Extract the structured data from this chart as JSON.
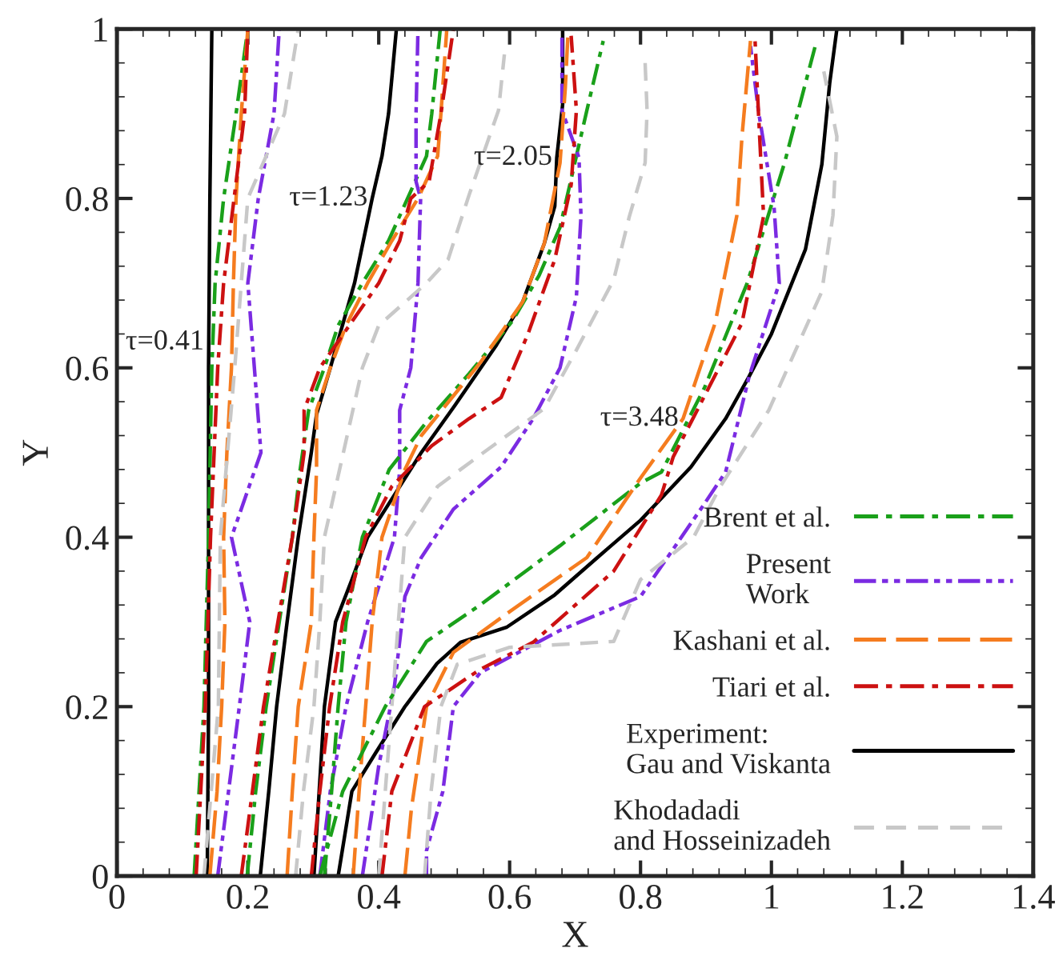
{
  "chart_data": {
    "type": "line",
    "xlabel": "X",
    "ylabel": "Y",
    "xlim": [
      0,
      1.4
    ],
    "ylim": [
      0,
      1
    ],
    "xticks": [
      0,
      0.2,
      0.4,
      0.6,
      0.8,
      1,
      1.2,
      1.4
    ],
    "yticks": [
      0,
      0.2,
      0.4,
      0.6,
      0.8,
      1
    ],
    "grid": false,
    "legend": "bottom right",
    "marker": "none",
    "annotations": [
      {
        "text": "τ=0.41",
        "x": 0.14,
        "y": 0.63
      },
      {
        "text": "τ=1.23",
        "x": 0.39,
        "y": 0.8
      },
      {
        "text": "τ=2.05",
        "x": 0.672,
        "y": 0.848
      },
      {
        "text": "τ=3.48",
        "x": 0.865,
        "y": 0.54
      }
    ],
    "series": [
      {
        "name": "Brent et al.",
        "color": "#1aa01a",
        "line_style": "dashdot",
        "x": [
          0.118,
          0.133,
          0.14,
          0.145,
          0.15,
          0.163,
          0.182,
          0.2
        ],
        "values": [
          0,
          0.2,
          0.4,
          0.6,
          0.7,
          0.8,
          0.9,
          1
        ]
      },
      {
        "name": "Present\nWork",
        "color": "#7b2be2",
        "line_style": "dashdotdot",
        "x": [
          0.154,
          0.187,
          0.203,
          0.175,
          0.22,
          0.21,
          0.2,
          0.216,
          0.24,
          0.248
        ],
        "values": [
          0,
          0.2,
          0.3,
          0.4,
          0.5,
          0.6,
          0.7,
          0.8,
          0.9,
          1
        ]
      },
      {
        "name": "Kashani et al.",
        "color": "#f57c1f",
        "line_style": "longdashed",
        "x": [
          0.142,
          0.153,
          0.16,
          0.165,
          0.163,
          0.168,
          0.175,
          0.178,
          0.182,
          0.19,
          0.2
        ],
        "values": [
          0,
          0.1,
          0.2,
          0.3,
          0.4,
          0.5,
          0.6,
          0.7,
          0.8,
          0.9,
          1
        ]
      },
      {
        "name": "Tiari et al.",
        "color": "#cc1111",
        "line_style": "dashdot",
        "x": [
          0.121,
          0.135,
          0.143,
          0.154,
          0.163,
          0.179,
          0.195,
          0.2
        ],
        "values": [
          0,
          0.2,
          0.4,
          0.6,
          0.7,
          0.8,
          0.9,
          1
        ]
      },
      {
        "name": "Experiment:\nGau and Viskanta",
        "color": "#000000",
        "line_style": "solid",
        "x": [
          0.138,
          0.14,
          0.14,
          0.14,
          0.142,
          0.145
        ],
        "values": [
          0,
          0.2,
          0.4,
          0.6,
          0.8,
          1
        ]
      },
      {
        "name": "Khodadadi\nand Hosseinizadeh",
        "color": "#c8c8c8",
        "line_style": "dashed",
        "x": [
          0.133,
          0.155,
          0.158,
          0.18,
          0.2,
          0.256,
          0.277
        ],
        "values": [
          0,
          0.2,
          0.4,
          0.6,
          0.8,
          0.9,
          1
        ]
      },
      {
        "color": "#1aa01a",
        "line_style": "dashdot",
        "x": [
          0.199,
          0.212,
          0.228,
          0.248,
          0.268,
          0.28,
          0.293,
          0.317,
          0.338,
          0.375,
          0.415,
          0.473,
          0.481,
          0.494
        ],
        "values": [
          0,
          0.1,
          0.2,
          0.3,
          0.4,
          0.48,
          0.55,
          0.6,
          0.65,
          0.7,
          0.75,
          0.85,
          0.9,
          1
        ]
      },
      {
        "color": "#7b2be2",
        "line_style": "dashdotdot",
        "x": [
          0.31,
          0.326,
          0.35,
          0.383,
          0.424,
          0.432,
          0.432,
          0.449,
          0.46,
          0.464,
          0.457,
          0.457,
          0.46
        ],
        "values": [
          0,
          0.1,
          0.2,
          0.3,
          0.4,
          0.48,
          0.55,
          0.6,
          0.7,
          0.8,
          0.82,
          0.9,
          1
        ]
      },
      {
        "color": "#f57c1f",
        "line_style": "longdashed",
        "x": [
          0.26,
          0.268,
          0.277,
          0.297,
          0.301,
          0.305,
          0.305,
          0.326,
          0.35,
          0.383,
          0.42,
          0.46,
          0.49,
          0.495,
          0.504
        ],
        "values": [
          0,
          0.1,
          0.2,
          0.3,
          0.4,
          0.48,
          0.55,
          0.6,
          0.65,
          0.7,
          0.75,
          0.8,
          0.85,
          0.9,
          1
        ]
      },
      {
        "color": "#cc1111",
        "line_style": "dashdot",
        "x": [
          0.19,
          0.224,
          0.268,
          0.286,
          0.286,
          0.31,
          0.4,
          0.432,
          0.449,
          0.477,
          0.495,
          0.514
        ],
        "values": [
          0,
          0.2,
          0.4,
          0.5,
          0.55,
          0.6,
          0.7,
          0.75,
          0.8,
          0.82,
          0.9,
          1
        ]
      },
      {
        "color": "#000000",
        "line_style": "solid",
        "x": [
          0.219,
          0.232,
          0.244,
          0.26,
          0.277,
          0.297,
          0.305,
          0.326,
          0.363,
          0.39,
          0.405,
          0.415,
          0.427
        ],
        "values": [
          0,
          0.1,
          0.2,
          0.3,
          0.4,
          0.5,
          0.545,
          0.6,
          0.7,
          0.8,
          0.85,
          0.9,
          1
        ]
      },
      {
        "color": "#c8c8c8",
        "line_style": "dashed",
        "x": [
          0.273,
          0.285,
          0.301,
          0.31,
          0.317,
          0.375,
          0.4,
          0.473,
          0.506,
          0.538,
          0.583,
          0.592
        ],
        "values": [
          0,
          0.1,
          0.2,
          0.3,
          0.4,
          0.6,
          0.65,
          0.7,
          0.728,
          0.804,
          0.904,
          0.97
        ]
      },
      {
        "color": "#1aa01a",
        "line_style": "dashdot",
        "x": [
          0.317,
          0.328,
          0.338,
          0.35,
          0.375,
          0.416,
          0.473,
          0.538,
          0.604,
          0.645,
          0.677,
          0.694,
          0.718,
          0.743
        ],
        "values": [
          0,
          0.1,
          0.2,
          0.3,
          0.4,
          0.48,
          0.536,
          0.593,
          0.655,
          0.709,
          0.766,
          0.823,
          0.904,
          0.986
        ]
      },
      {
        "color": "#7b2be2",
        "line_style": "dashdotdot",
        "x": [
          0.375,
          0.4,
          0.424,
          0.44,
          0.465,
          0.514,
          0.587,
          0.636,
          0.677,
          0.702,
          0.709,
          0.706,
          0.68,
          0.68
        ],
        "values": [
          0,
          0.13,
          0.224,
          0.33,
          0.376,
          0.433,
          0.483,
          0.54,
          0.6,
          0.684,
          0.779,
          0.848,
          0.904,
          0.99
        ]
      },
      {
        "color": "#f57c1f",
        "line_style": "longdashed",
        "x": [
          0.361,
          0.37,
          0.38,
          0.39,
          0.405,
          0.44,
          0.465,
          0.555,
          0.62,
          0.653,
          0.677,
          0.685,
          0.689
        ],
        "values": [
          0,
          0.1,
          0.2,
          0.3,
          0.4,
          0.48,
          0.52,
          0.606,
          0.678,
          0.747,
          0.842,
          0.93,
          0.992
        ]
      },
      {
        "color": "#cc1111",
        "line_style": "dashdot",
        "x": [
          0.297,
          0.31,
          0.325,
          0.345,
          0.38,
          0.42,
          0.481,
          0.538,
          0.587,
          0.628,
          0.669,
          0.694,
          0.702,
          0.694
        ],
        "values": [
          0,
          0.1,
          0.2,
          0.3,
          0.4,
          0.46,
          0.508,
          0.54,
          0.565,
          0.64,
          0.728,
          0.816,
          0.904,
          0.992
        ]
      },
      {
        "color": "#000000",
        "line_style": "solid",
        "x": [
          0.301,
          0.309,
          0.317,
          0.334,
          0.359,
          0.383,
          0.424,
          0.465,
          0.514,
          0.58,
          0.62,
          0.653,
          0.669,
          0.672,
          0.681,
          0.681
        ],
        "values": [
          0,
          0.1,
          0.2,
          0.3,
          0.35,
          0.4,
          0.45,
          0.5,
          0.553,
          0.627,
          0.678,
          0.747,
          0.791,
          0.848,
          0.911,
          1
        ]
      },
      {
        "color": "#c8c8c8",
        "line_style": "dashed",
        "x": [
          0.4,
          0.41,
          0.42,
          0.43,
          0.44,
          0.49,
          0.56,
          0.653,
          0.702,
          0.759,
          0.783,
          0.807,
          0.81,
          0.807
        ],
        "values": [
          0,
          0.1,
          0.2,
          0.3,
          0.4,
          0.46,
          0.5,
          0.552,
          0.621,
          0.704,
          0.779,
          0.842,
          0.904,
          0.96
        ]
      },
      {
        "color": "#1aa01a",
        "line_style": "dashdot",
        "x": [
          0.31,
          0.345,
          0.41,
          0.473,
          0.555,
          0.677,
          0.8,
          0.832,
          0.898,
          0.963,
          1.02,
          1.069
        ],
        "values": [
          0,
          0.1,
          0.2,
          0.277,
          0.32,
          0.39,
          0.464,
          0.477,
          0.577,
          0.7,
          0.842,
          0.986
        ]
      },
      {
        "color": "#7b2be2",
        "line_style": "dashdotdot",
        "x": [
          0.473,
          0.473,
          0.498,
          0.514,
          0.555,
          0.677,
          0.8,
          0.898,
          0.93,
          0.966,
          1.012,
          1.004,
          0.98,
          0.968
        ],
        "values": [
          0,
          0.03,
          0.1,
          0.2,
          0.24,
          0.29,
          0.33,
          0.44,
          0.477,
          0.59,
          0.7,
          0.79,
          0.904,
          0.98
        ]
      },
      {
        "color": "#f57c1f",
        "line_style": "longdashed",
        "x": [
          0.44,
          0.45,
          0.473,
          0.514,
          0.596,
          0.718,
          0.8,
          0.865,
          0.914,
          0.947,
          0.955,
          0.968
        ],
        "values": [
          0,
          0.08,
          0.2,
          0.264,
          0.31,
          0.376,
          0.47,
          0.54,
          0.653,
          0.779,
          0.873,
          0.986
        ]
      },
      {
        "color": "#cc1111",
        "line_style": "dashdot",
        "x": [
          0.405,
          0.42,
          0.47,
          0.555,
          0.636,
          0.759,
          0.832,
          0.85,
          0.955,
          0.988,
          0.98,
          0.975
        ],
        "values": [
          0,
          0.1,
          0.2,
          0.244,
          0.276,
          0.36,
          0.45,
          0.495,
          0.653,
          0.779,
          0.904,
          0.986
        ]
      },
      {
        "color": "#000000",
        "line_style": "solid",
        "x": [
          0.338,
          0.359,
          0.395,
          0.44,
          0.489,
          0.525,
          0.596,
          0.669,
          0.734,
          0.8,
          0.877,
          0.93,
          0.966,
          1.0,
          1.052,
          1.077,
          1.089,
          1.1
        ],
        "values": [
          0,
          0.1,
          0.145,
          0.2,
          0.251,
          0.276,
          0.294,
          0.332,
          0.376,
          0.42,
          0.483,
          0.54,
          0.59,
          0.64,
          0.74,
          0.84,
          0.936,
          1
        ]
      },
      {
        "color": "#c8c8c8",
        "line_style": "dashed",
        "x": [
          0.47,
          0.48,
          0.495,
          0.52,
          0.6,
          0.759,
          0.8,
          0.881,
          0.922,
          0.996,
          1.077,
          1.094,
          1.1,
          1.08
        ],
        "values": [
          0,
          0.1,
          0.2,
          0.25,
          0.27,
          0.277,
          0.35,
          0.4,
          0.46,
          0.55,
          0.69,
          0.78,
          0.873,
          0.95
        ]
      }
    ]
  }
}
